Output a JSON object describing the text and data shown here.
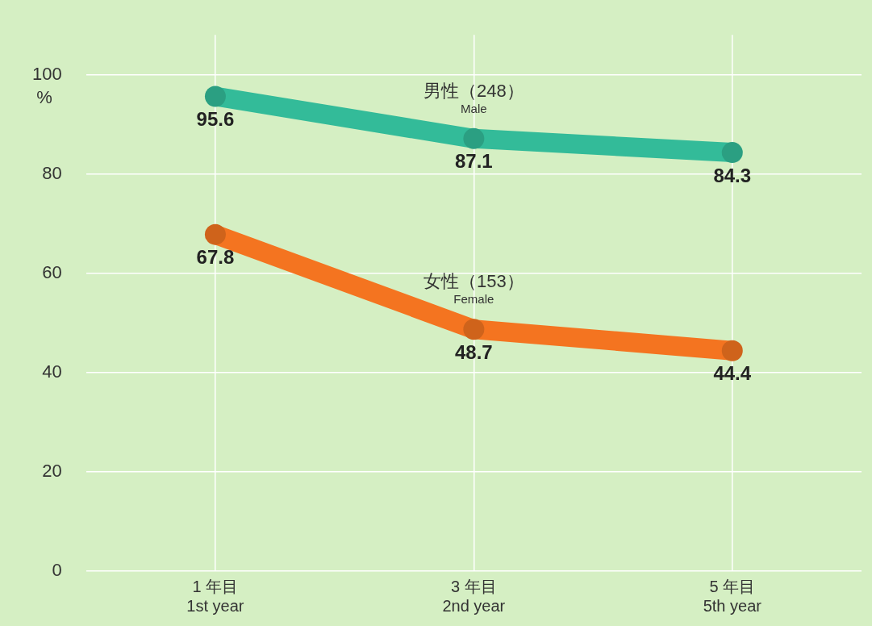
{
  "chart_data": {
    "type": "line",
    "categories": [
      "1 年目\n1st year",
      "3 年目\n2nd year",
      "5 年目\n5th year"
    ],
    "series": [
      {
        "name": "男性（248）\nMale",
        "color": "#33bb99",
        "values": [
          95.6,
          87.1,
          84.3
        ]
      },
      {
        "name": "女性（153）\nFemale",
        "color": "#f47420",
        "values": [
          67.8,
          48.7,
          44.4
        ]
      }
    ],
    "ylabel": "%",
    "ylim": [
      0,
      108
    ],
    "yticks": [
      0,
      20,
      40,
      60,
      80,
      100
    ],
    "grid": true,
    "legend": false,
    "marker": "circle",
    "line_style": "solid",
    "data_labels": true
  }
}
